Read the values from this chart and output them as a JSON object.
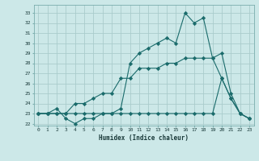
{
  "xlabel": "Humidex (Indice chaleur)",
  "ylabel": "",
  "bg_color": "#cce8e8",
  "grid_color": "#aacccc",
  "line_color": "#1a6b6b",
  "xlim": [
    -0.5,
    23.5
  ],
  "ylim": [
    21.8,
    33.8
  ],
  "yticks": [
    22,
    23,
    24,
    25,
    26,
    27,
    28,
    29,
    30,
    31,
    32,
    33
  ],
  "xticks": [
    0,
    1,
    2,
    3,
    4,
    5,
    6,
    7,
    8,
    9,
    10,
    11,
    12,
    13,
    14,
    15,
    16,
    17,
    18,
    19,
    20,
    21,
    22,
    23
  ],
  "line1": [
    23,
    23,
    23.5,
    22.5,
    22,
    22.5,
    22.5,
    23,
    23,
    23.5,
    28,
    29,
    29.5,
    30,
    30.5,
    30,
    33,
    32,
    32.5,
    28.5,
    26.5,
    24.5,
    23,
    22.5
  ],
  "line2": [
    23,
    23,
    23,
    23,
    24,
    24,
    24.5,
    25,
    25,
    26.5,
    26.5,
    27.5,
    27.5,
    27.5,
    28,
    28,
    28.5,
    28.5,
    28.5,
    28.5,
    29,
    25,
    23,
    22.5
  ],
  "line3": [
    23,
    23,
    23,
    23,
    23,
    23,
    23,
    23,
    23,
    23,
    23,
    23,
    23,
    23,
    23,
    23,
    23,
    23,
    23,
    23,
    26.5,
    24.5,
    23,
    22.5
  ]
}
